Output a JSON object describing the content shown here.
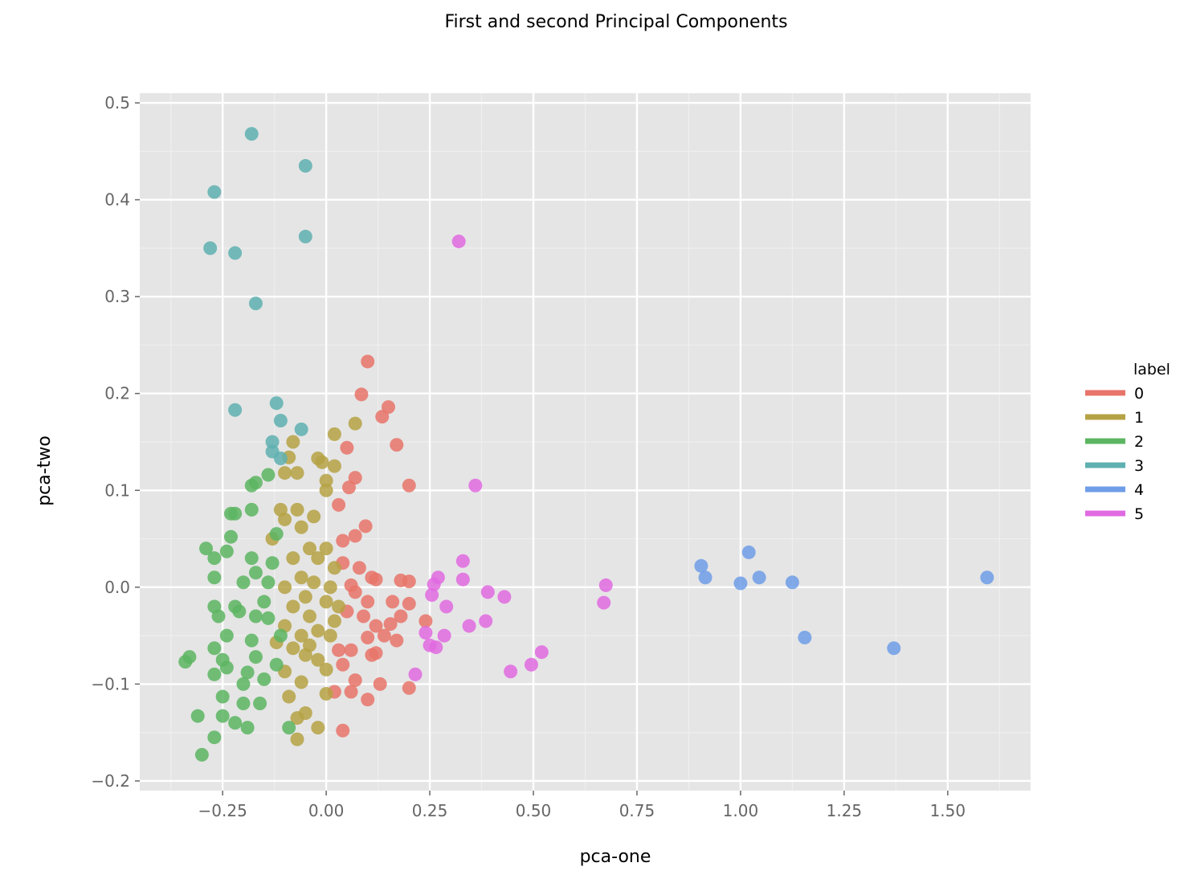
{
  "chart_data": {
    "type": "scatter",
    "title": "First and second Principal Components",
    "xlabel": "pca-one",
    "ylabel": "pca-two",
    "xlim": [
      -0.45,
      1.7
    ],
    "ylim": [
      -0.21,
      0.51
    ],
    "xticks": [
      -0.25,
      0.0,
      0.25,
      0.5,
      0.75,
      1.0,
      1.25,
      1.5
    ],
    "xtick_labels": [
      "−0.25",
      "0.00",
      "0.25",
      "0.50",
      "0.75",
      "1.00",
      "1.25",
      "1.50"
    ],
    "yticks": [
      -0.2,
      -0.1,
      0.0,
      0.1,
      0.2,
      0.3,
      0.4,
      0.5
    ],
    "ytick_labels": [
      "−0.2",
      "−0.1",
      "0.0",
      "0.1",
      "0.2",
      "0.3",
      "0.4",
      "0.5"
    ],
    "grid": true,
    "legend": {
      "title": "label",
      "position": "right"
    },
    "colors": {
      "panel_background": "#e5e5e5",
      "grid_major": "#ffffff",
      "grid_minor": "#efefef"
    },
    "series": [
      {
        "name": "0",
        "color": "#e8746a",
        "points": [
          [
            0.1,
            0.233
          ],
          [
            0.085,
            0.199
          ],
          [
            0.15,
            0.186
          ],
          [
            0.135,
            0.176
          ],
          [
            0.05,
            0.144
          ],
          [
            0.17,
            0.147
          ],
          [
            0.07,
            0.113
          ],
          [
            0.055,
            0.103
          ],
          [
            0.2,
            0.105
          ],
          [
            0.03,
            0.085
          ],
          [
            0.095,
            0.063
          ],
          [
            0.07,
            0.053
          ],
          [
            0.04,
            0.048
          ],
          [
            0.04,
            0.025
          ],
          [
            0.08,
            0.02
          ],
          [
            0.11,
            0.01
          ],
          [
            0.12,
            0.008
          ],
          [
            0.18,
            0.007
          ],
          [
            0.2,
            0.006
          ],
          [
            0.06,
            0.002
          ],
          [
            0.07,
            -0.005
          ],
          [
            0.1,
            -0.015
          ],
          [
            0.16,
            -0.015
          ],
          [
            0.2,
            -0.017
          ],
          [
            0.05,
            -0.025
          ],
          [
            0.09,
            -0.03
          ],
          [
            0.12,
            -0.04
          ],
          [
            0.18,
            -0.03
          ],
          [
            0.24,
            -0.035
          ],
          [
            0.155,
            -0.038
          ],
          [
            0.1,
            -0.052
          ],
          [
            0.14,
            -0.05
          ],
          [
            0.17,
            -0.055
          ],
          [
            0.12,
            -0.068
          ],
          [
            0.06,
            -0.065
          ],
          [
            0.03,
            -0.065
          ],
          [
            0.11,
            -0.07
          ],
          [
            0.04,
            -0.08
          ],
          [
            0.07,
            -0.096
          ],
          [
            0.13,
            -0.1
          ],
          [
            0.2,
            -0.104
          ],
          [
            0.02,
            -0.108
          ],
          [
            0.06,
            -0.108
          ],
          [
            0.1,
            -0.116
          ],
          [
            0.04,
            -0.148
          ]
        ]
      },
      {
        "name": "1",
        "color": "#b5a244",
        "points": [
          [
            0.07,
            0.169
          ],
          [
            0.02,
            0.158
          ],
          [
            -0.08,
            0.15
          ],
          [
            -0.09,
            0.134
          ],
          [
            -0.02,
            0.133
          ],
          [
            -0.01,
            0.129
          ],
          [
            0.02,
            0.125
          ],
          [
            -0.07,
            0.118
          ],
          [
            -0.1,
            0.118
          ],
          [
            0.0,
            0.11
          ],
          [
            0.0,
            0.1
          ],
          [
            -0.11,
            0.08
          ],
          [
            -0.07,
            0.08
          ],
          [
            -0.1,
            0.07
          ],
          [
            -0.03,
            0.073
          ],
          [
            -0.06,
            0.062
          ],
          [
            -0.13,
            0.05
          ],
          [
            -0.04,
            0.04
          ],
          [
            0.0,
            0.04
          ],
          [
            -0.08,
            0.03
          ],
          [
            -0.02,
            0.03
          ],
          [
            0.02,
            0.02
          ],
          [
            -0.06,
            0.01
          ],
          [
            -0.03,
            0.005
          ],
          [
            0.01,
            0.0
          ],
          [
            -0.1,
            0.0
          ],
          [
            -0.05,
            -0.01
          ],
          [
            0.0,
            -0.015
          ],
          [
            0.03,
            -0.02
          ],
          [
            -0.08,
            -0.02
          ],
          [
            -0.04,
            -0.03
          ],
          [
            0.02,
            -0.035
          ],
          [
            -0.1,
            -0.04
          ],
          [
            -0.06,
            -0.05
          ],
          [
            -0.02,
            -0.045
          ],
          [
            0.01,
            -0.05
          ],
          [
            -0.04,
            -0.06
          ],
          [
            -0.08,
            -0.063
          ],
          [
            -0.12,
            -0.057
          ],
          [
            -0.05,
            -0.07
          ],
          [
            -0.02,
            -0.075
          ],
          [
            0.0,
            -0.085
          ],
          [
            -0.1,
            -0.087
          ],
          [
            -0.06,
            -0.098
          ],
          [
            0.0,
            -0.11
          ],
          [
            -0.09,
            -0.113
          ],
          [
            -0.05,
            -0.13
          ],
          [
            -0.07,
            -0.135
          ],
          [
            -0.02,
            -0.145
          ],
          [
            -0.07,
            -0.157
          ]
        ]
      },
      {
        "name": "2",
        "color": "#5cb561",
        "points": [
          [
            -0.14,
            0.116
          ],
          [
            -0.17,
            0.108
          ],
          [
            -0.18,
            0.105
          ],
          [
            -0.23,
            0.076
          ],
          [
            -0.22,
            0.076
          ],
          [
            -0.18,
            0.08
          ],
          [
            -0.12,
            0.055
          ],
          [
            -0.23,
            0.052
          ],
          [
            -0.29,
            0.04
          ],
          [
            -0.24,
            0.037
          ],
          [
            -0.27,
            0.03
          ],
          [
            -0.18,
            0.03
          ],
          [
            -0.13,
            0.025
          ],
          [
            -0.17,
            0.015
          ],
          [
            -0.27,
            0.01
          ],
          [
            -0.2,
            0.005
          ],
          [
            -0.14,
            0.005
          ],
          [
            -0.27,
            -0.02
          ],
          [
            -0.22,
            -0.02
          ],
          [
            -0.15,
            -0.015
          ],
          [
            -0.26,
            -0.03
          ],
          [
            -0.21,
            -0.025
          ],
          [
            -0.17,
            -0.03
          ],
          [
            -0.14,
            -0.032
          ],
          [
            -0.24,
            -0.05
          ],
          [
            -0.18,
            -0.055
          ],
          [
            -0.11,
            -0.05
          ],
          [
            -0.27,
            -0.063
          ],
          [
            -0.33,
            -0.072
          ],
          [
            -0.34,
            -0.077
          ],
          [
            -0.25,
            -0.075
          ],
          [
            -0.17,
            -0.072
          ],
          [
            -0.12,
            -0.08
          ],
          [
            -0.24,
            -0.083
          ],
          [
            -0.19,
            -0.088
          ],
          [
            -0.27,
            -0.09
          ],
          [
            -0.2,
            -0.1
          ],
          [
            -0.15,
            -0.095
          ],
          [
            -0.25,
            -0.113
          ],
          [
            -0.16,
            -0.12
          ],
          [
            -0.2,
            -0.12
          ],
          [
            -0.31,
            -0.133
          ],
          [
            -0.25,
            -0.133
          ],
          [
            -0.22,
            -0.14
          ],
          [
            -0.19,
            -0.145
          ],
          [
            -0.27,
            -0.155
          ],
          [
            -0.3,
            -0.173
          ],
          [
            -0.09,
            -0.145
          ]
        ]
      },
      {
        "name": "3",
        "color": "#5fb0b0",
        "points": [
          [
            -0.18,
            0.468
          ],
          [
            -0.05,
            0.435
          ],
          [
            -0.27,
            0.408
          ],
          [
            -0.05,
            0.362
          ],
          [
            -0.28,
            0.35
          ],
          [
            -0.22,
            0.345
          ],
          [
            -0.17,
            0.293
          ],
          [
            -0.22,
            0.183
          ],
          [
            -0.12,
            0.19
          ],
          [
            -0.11,
            0.172
          ],
          [
            -0.06,
            0.163
          ],
          [
            -0.13,
            0.15
          ],
          [
            -0.13,
            0.14
          ],
          [
            -0.11,
            0.133
          ]
        ]
      },
      {
        "name": "4",
        "color": "#6f9de8",
        "points": [
          [
            1.02,
            0.036
          ],
          [
            0.905,
            0.022
          ],
          [
            0.915,
            0.01
          ],
          [
            1.045,
            0.01
          ],
          [
            1.0,
            0.004
          ],
          [
            1.125,
            0.005
          ],
          [
            1.595,
            0.01
          ],
          [
            1.155,
            -0.052
          ],
          [
            1.37,
            -0.063
          ]
        ]
      },
      {
        "name": "5",
        "color": "#e06ae0",
        "points": [
          [
            0.32,
            0.357
          ],
          [
            0.36,
            0.105
          ],
          [
            0.33,
            0.027
          ],
          [
            0.27,
            0.01
          ],
          [
            0.33,
            0.008
          ],
          [
            0.26,
            0.003
          ],
          [
            0.675,
            0.002
          ],
          [
            0.39,
            -0.005
          ],
          [
            0.43,
            -0.01
          ],
          [
            0.255,
            -0.008
          ],
          [
            0.67,
            -0.016
          ],
          [
            0.29,
            -0.02
          ],
          [
            0.385,
            -0.035
          ],
          [
            0.345,
            -0.04
          ],
          [
            0.24,
            -0.047
          ],
          [
            0.285,
            -0.05
          ],
          [
            0.25,
            -0.06
          ],
          [
            0.265,
            -0.062
          ],
          [
            0.52,
            -0.067
          ],
          [
            0.495,
            -0.08
          ],
          [
            0.445,
            -0.087
          ],
          [
            0.215,
            -0.09
          ]
        ]
      }
    ]
  }
}
